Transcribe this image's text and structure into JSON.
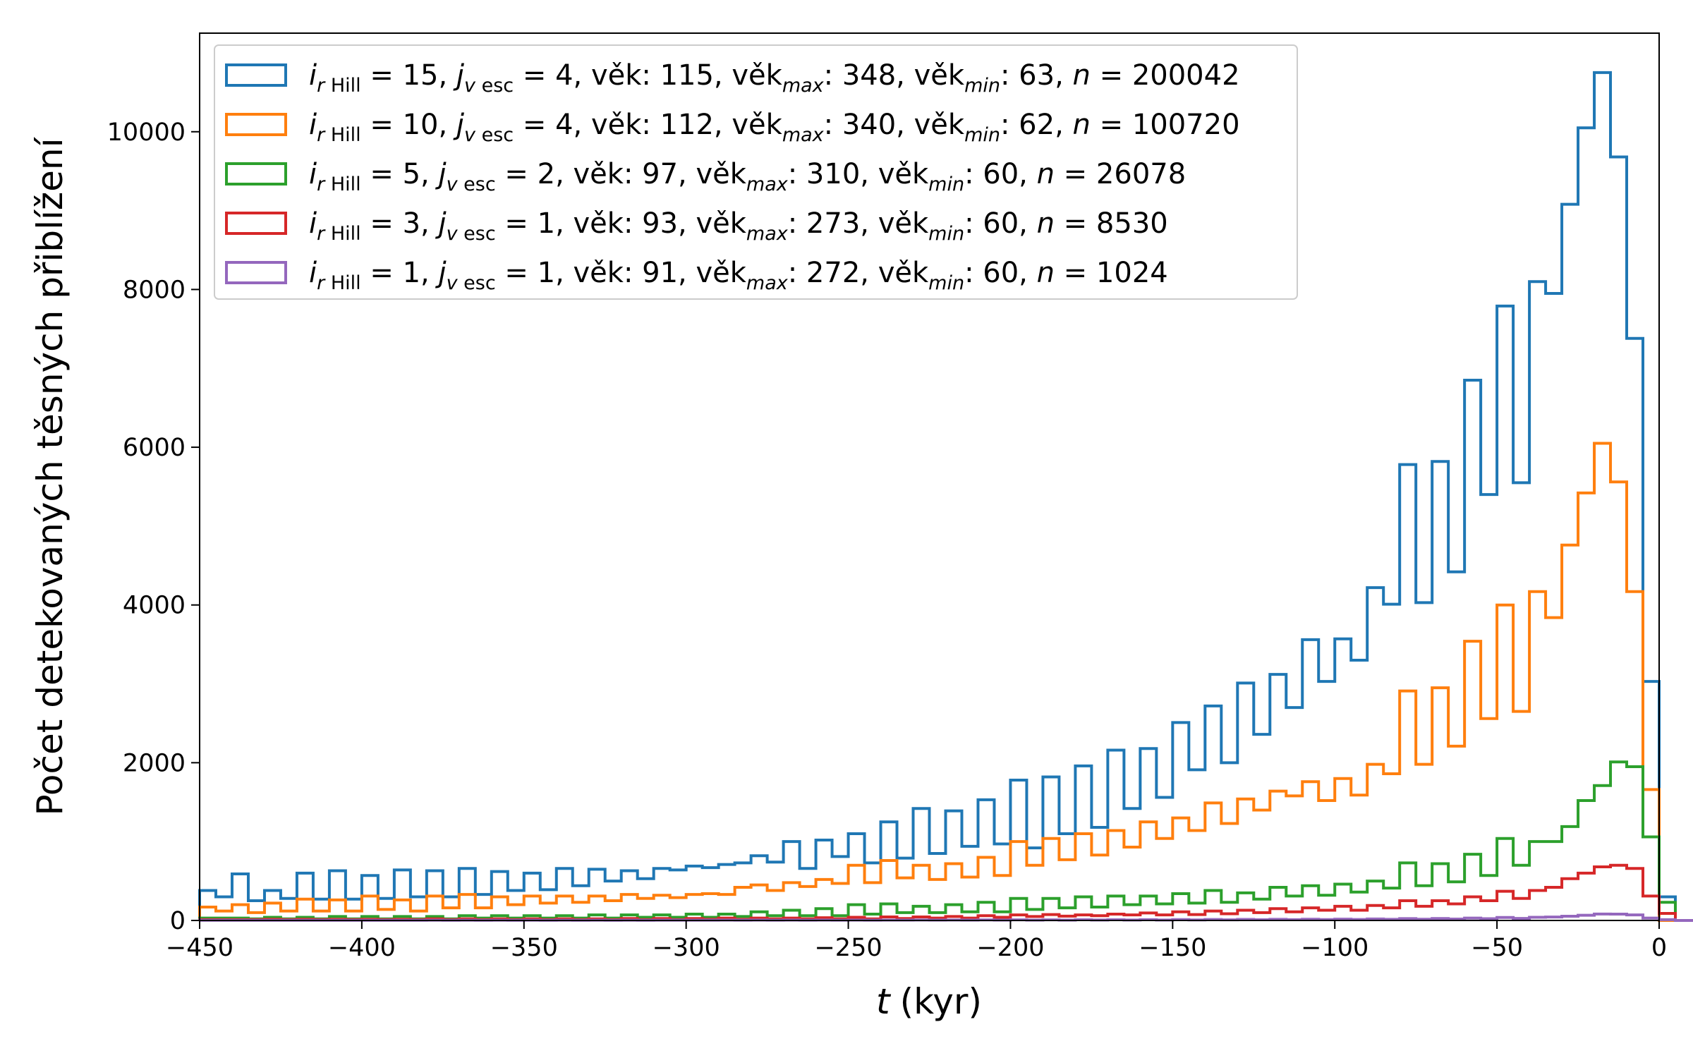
{
  "chart_data": {
    "type": "histogram",
    "xlabel": {
      "var": "t",
      "unit": "(kyr)"
    },
    "ylabel": "Počet detekovaných těsných přiblížení",
    "xlim": [
      -450,
      0
    ],
    "ylim": [
      0,
      11250
    ],
    "x_ticks": [
      -450,
      -400,
      -350,
      -300,
      -250,
      -200,
      -150,
      -100,
      -50,
      0
    ],
    "y_ticks": [
      0,
      2000,
      4000,
      6000,
      8000,
      10000
    ],
    "bin_start": -450,
    "bin_width": 5,
    "grid": false,
    "legend_position": "upper-left",
    "series": [
      {
        "color": "#1f77b4",
        "legend": {
          "i": "15",
          "j": "4",
          "vek": "115",
          "vekmax": "348",
          "vekmin": "63",
          "n": "200042"
        },
        "values": [
          380,
          300,
          590,
          250,
          380,
          280,
          600,
          270,
          630,
          270,
          570,
          280,
          640,
          300,
          630,
          300,
          660,
          330,
          620,
          380,
          600,
          390,
          660,
          440,
          650,
          500,
          630,
          530,
          660,
          640,
          690,
          670,
          710,
          730,
          820,
          740,
          1000,
          660,
          1020,
          810,
          1100,
          730,
          1250,
          790,
          1420,
          850,
          1390,
          940,
          1530,
          970,
          1780,
          920,
          1820,
          1100,
          1960,
          1180,
          2160,
          1420,
          2180,
          1560,
          2510,
          1910,
          2720,
          2000,
          3010,
          2360,
          3120,
          2700,
          3560,
          3030,
          3570,
          3300,
          4220,
          4010,
          5780,
          4030,
          5820,
          4420,
          6850,
          5400,
          7790,
          5550,
          8100,
          7950,
          9080,
          10050,
          10750,
          9680,
          7380,
          3030,
          300,
          0,
          0,
          0,
          0,
          0,
          0,
          0,
          0,
          0
        ]
      },
      {
        "color": "#ff7f0e",
        "legend": {
          "i": "10",
          "j": "4",
          "vek": "112",
          "vekmax": "340",
          "vekmin": "62",
          "n": "100720"
        },
        "values": [
          170,
          120,
          200,
          100,
          220,
          120,
          270,
          120,
          260,
          120,
          310,
          140,
          260,
          120,
          310,
          160,
          330,
          160,
          300,
          200,
          310,
          220,
          310,
          230,
          310,
          250,
          330,
          280,
          320,
          290,
          330,
          340,
          330,
          420,
          450,
          380,
          480,
          430,
          520,
          470,
          700,
          480,
          760,
          540,
          700,
          520,
          720,
          550,
          800,
          570,
          1000,
          700,
          1040,
          770,
          1100,
          830,
          1140,
          930,
          1250,
          1040,
          1300,
          1140,
          1490,
          1230,
          1540,
          1400,
          1640,
          1580,
          1760,
          1520,
          1800,
          1590,
          1980,
          1860,
          2910,
          1980,
          2950,
          2210,
          3540,
          2560,
          4000,
          2650,
          4170,
          3840,
          4760,
          5420,
          6050,
          5560,
          4170,
          1660,
          0,
          0,
          0,
          0,
          0,
          0,
          0,
          0,
          0,
          0
        ]
      },
      {
        "color": "#2ca02c",
        "legend": {
          "i": " 5",
          "j": "2",
          "vek": " 97",
          "vekmax": "310",
          "vekmin": "60",
          "n": "26078"
        },
        "values": [
          30,
          30,
          30,
          20,
          40,
          20,
          40,
          20,
          50,
          20,
          50,
          20,
          50,
          20,
          50,
          20,
          60,
          30,
          60,
          30,
          60,
          30,
          60,
          30,
          70,
          30,
          70,
          40,
          70,
          40,
          80,
          40,
          80,
          50,
          110,
          60,
          130,
          60,
          150,
          60,
          200,
          80,
          210,
          100,
          180,
          100,
          200,
          110,
          230,
          110,
          280,
          140,
          280,
          160,
          300,
          170,
          310,
          200,
          310,
          210,
          340,
          220,
          380,
          230,
          350,
          270,
          420,
          310,
          440,
          320,
          460,
          360,
          500,
          410,
          730,
          440,
          720,
          490,
          840,
          570,
          1040,
          700,
          1000,
          1000,
          1190,
          1520,
          1710,
          2010,
          1950,
          1060,
          230,
          0,
          0,
          0,
          0,
          0,
          0,
          0,
          0,
          0
        ]
      },
      {
        "color": "#d62728",
        "legend": {
          "i": " 3",
          "j": "1",
          "vek": " 93",
          "vekmax": "273",
          "vekmin": "60",
          "n": "8530"
        },
        "values": [
          10,
          10,
          10,
          10,
          15,
          10,
          15,
          10,
          15,
          10,
          15,
          10,
          15,
          10,
          20,
          10,
          20,
          10,
          20,
          10,
          20,
          10,
          20,
          10,
          20,
          10,
          25,
          10,
          25,
          10,
          25,
          15,
          30,
          15,
          30,
          20,
          30,
          20,
          35,
          20,
          40,
          20,
          45,
          25,
          45,
          30,
          50,
          30,
          60,
          40,
          70,
          50,
          75,
          55,
          70,
          60,
          80,
          70,
          95,
          70,
          110,
          75,
          120,
          85,
          130,
          100,
          150,
          110,
          160,
          130,
          180,
          130,
          190,
          160,
          250,
          180,
          250,
          210,
          300,
          250,
          370,
          280,
          380,
          420,
          530,
          600,
          680,
          700,
          660,
          310,
          90,
          0,
          0,
          0,
          0,
          0,
          0,
          0,
          0,
          0
        ]
      },
      {
        "color": "#9467bd",
        "legend": {
          "i": " 1",
          "j": "1",
          "vek": " 91",
          "vekmax": "272",
          "vekmin": "60",
          "n": "1024"
        },
        "values": [
          2,
          2,
          2,
          2,
          2,
          2,
          2,
          2,
          2,
          2,
          2,
          2,
          2,
          2,
          3,
          2,
          3,
          2,
          3,
          2,
          3,
          2,
          3,
          2,
          3,
          2,
          3,
          2,
          3,
          3,
          3,
          3,
          4,
          3,
          4,
          3,
          4,
          3,
          5,
          3,
          5,
          3,
          5,
          4,
          6,
          4,
          6,
          4,
          7,
          4,
          8,
          5,
          8,
          5,
          9,
          6,
          9,
          6,
          10,
          6,
          11,
          7,
          12,
          8,
          13,
          9,
          15,
          10,
          16,
          11,
          17,
          12,
          19,
          14,
          24,
          16,
          25,
          18,
          30,
          22,
          38,
          26,
          40,
          44,
          54,
          66,
          82,
          80,
          70,
          30,
          10,
          0,
          0,
          0,
          0,
          0,
          0,
          0,
          0,
          0
        ]
      }
    ]
  }
}
